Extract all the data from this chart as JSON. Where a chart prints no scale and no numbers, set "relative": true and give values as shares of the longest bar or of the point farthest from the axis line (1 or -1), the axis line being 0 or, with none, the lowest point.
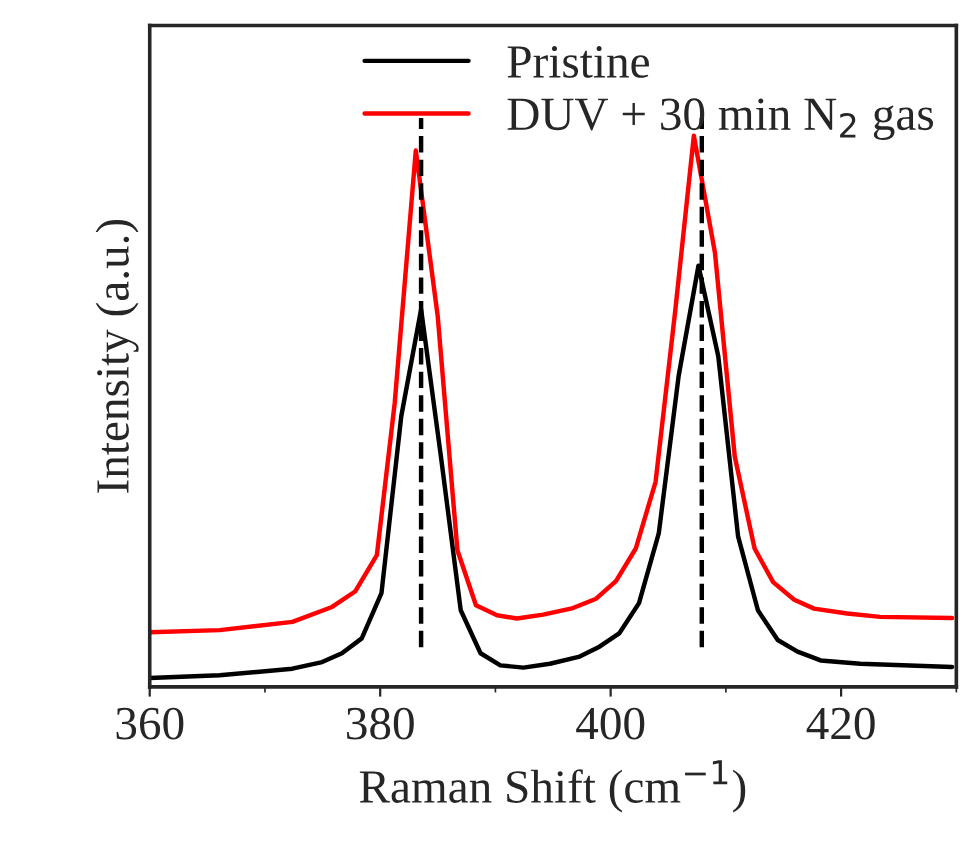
{
  "chart_data": {
    "type": "line",
    "xlabel": "Raman Shift (cm$^{−1}$)",
    "ylabel": "Intensity (a.u.)",
    "relative": true,
    "xlim": [
      360,
      430
    ],
    "xticks": [
      360,
      380,
      400,
      420
    ],
    "tick_labels": "x",
    "legend": "top",
    "grid": false,
    "line_style": "solid",
    "series": [
      {
        "name": "Pristine",
        "color": "#000000",
        "x": [
          360,
          366.07,
          372.38,
          374.96,
          376.68,
          378.4,
          380.11,
          381.83,
          383.55,
          385.27,
          386.99,
          388.71,
          390.43,
          392.43,
          394.73,
          397.31,
          399.03,
          400.74,
          402.46,
          404.18,
          405.9,
          407.62,
          409.34,
          411.06,
          412.78,
          414.5,
          416.22,
          418.22,
          421.66,
          429.63
        ],
        "values": [
          0.016,
          0.021,
          0.033,
          0.045,
          0.061,
          0.088,
          0.17,
          0.491,
          0.685,
          0.418,
          0.139,
          0.061,
          0.039,
          0.035,
          0.042,
          0.055,
          0.073,
          0.097,
          0.152,
          0.279,
          0.564,
          0.764,
          0.6,
          0.273,
          0.139,
          0.085,
          0.064,
          0.048,
          0.042,
          0.036
        ]
      },
      {
        "name": "DUV + 30 min N$_{2}$ gas",
        "color": "#ff0000",
        "x": [
          360,
          366.07,
          372.38,
          375.82,
          377.82,
          379.71,
          381.26,
          383.09,
          384.99,
          386.7,
          388.31,
          390.14,
          391.86,
          394.15,
          396.73,
          398.74,
          400.46,
          402.18,
          403.9,
          405.62,
          407.22,
          409.05,
          410.77,
          412.49,
          414.1,
          415.93,
          417.65,
          420.52,
          423.38,
          429.63
        ],
        "values": [
          0.099,
          0.103,
          0.118,
          0.145,
          0.173,
          0.239,
          0.515,
          0.973,
          0.673,
          0.248,
          0.148,
          0.13,
          0.124,
          0.131,
          0.143,
          0.16,
          0.192,
          0.251,
          0.372,
          0.685,
          1.0,
          0.788,
          0.418,
          0.251,
          0.19,
          0.158,
          0.142,
          0.133,
          0.127,
          0.125
        ]
      }
    ],
    "ref_lines": [
      {
        "axis": "x",
        "value": 383.55,
        "color": "#000000",
        "line_style": "dashed"
      },
      {
        "axis": "x",
        "value": 407.91,
        "color": "#000000",
        "line_style": "dashed"
      }
    ]
  }
}
